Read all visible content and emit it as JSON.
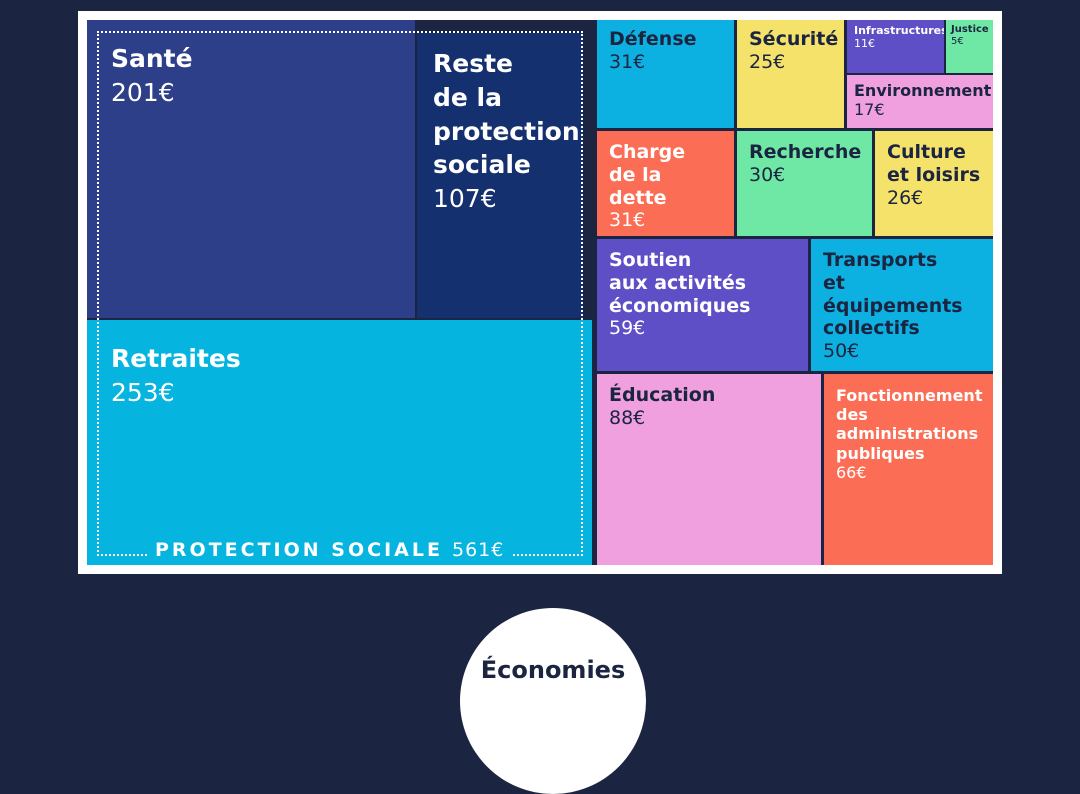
{
  "chart_data": {
    "type": "treemap",
    "currency": "€",
    "groups": [
      {
        "name": "PROTECTION SOCIALE",
        "value_label": "561€",
        "value": 561,
        "items": [
          {
            "key": "sante",
            "label": "Santé",
            "value_label": "201€",
            "value": 201,
            "color": "#2e3f8a"
          },
          {
            "key": "reste",
            "label": "Reste\nde la\nprotection\nsociale",
            "value_label": "107€",
            "value": 107,
            "color": "#14306e"
          },
          {
            "key": "retraites",
            "label": "Retraites",
            "value_label": "253€",
            "value": 253,
            "color": "#06b4e0"
          }
        ]
      }
    ],
    "items": [
      {
        "key": "defense",
        "label": "Défense",
        "value_label": "31€",
        "value": 31,
        "color": "#0db1e1"
      },
      {
        "key": "securite",
        "label": "Sécurité",
        "value_label": "25€",
        "value": 25,
        "color": "#f5e26a"
      },
      {
        "key": "infrastructures",
        "label": "Infrastructures",
        "value_label": "11€",
        "value": 11,
        "color": "#5e4fc7"
      },
      {
        "key": "justice",
        "label": "Justice",
        "value_label": "5€",
        "value": 5,
        "color": "#6fe8a5"
      },
      {
        "key": "environnement",
        "label": "Environnement",
        "value_label": "17€",
        "value": 17,
        "color": "#f0a0df"
      },
      {
        "key": "dette",
        "label": "Charge\nde la dette",
        "value_label": "31€",
        "value": 31,
        "color": "#fb6e55"
      },
      {
        "key": "recherche",
        "label": "Recherche",
        "value_label": "30€",
        "value": 30,
        "color": "#6fe8a5"
      },
      {
        "key": "culture",
        "label": "Culture\net loisirs",
        "value_label": "26€",
        "value": 26,
        "color": "#f5e26a"
      },
      {
        "key": "soutien",
        "label": "Soutien\naux activités\néconomiques",
        "value_label": "59€",
        "value": 59,
        "color": "#5e4fc7"
      },
      {
        "key": "transports",
        "label": "Transports\net équipements\ncollectifs",
        "value_label": "50€",
        "value": 50,
        "color": "#0db1e1"
      },
      {
        "key": "education",
        "label": "Éducation",
        "value_label": "88€",
        "value": 88,
        "color": "#f0a0df"
      },
      {
        "key": "fonctionnement",
        "label": "Fonctionnement\ndes\nadministrations\npubliques",
        "value_label": "66€",
        "value": 66,
        "color": "#fb6e55"
      }
    ]
  },
  "footer": {
    "bubble_text": "Économies"
  }
}
